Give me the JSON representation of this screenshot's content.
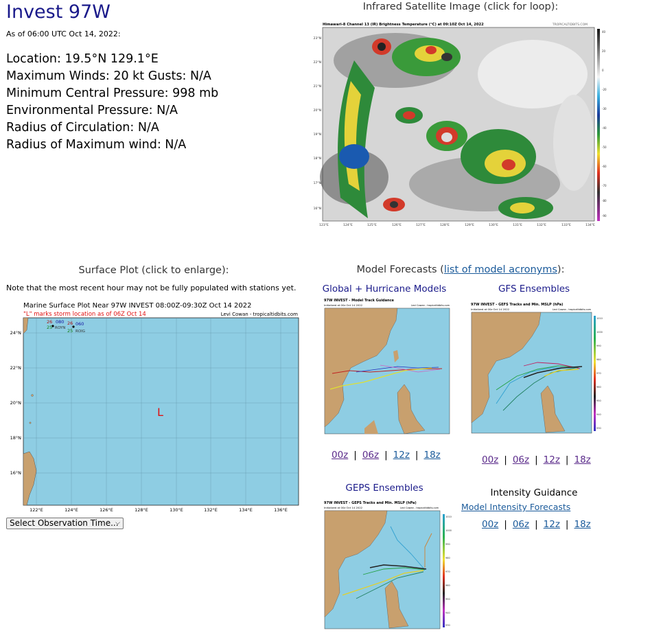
{
  "storm": {
    "title": "Invest 97W",
    "as_of": "As of 06:00 UTC Oct 14, 2022:",
    "location": "Location: 19.5°N 129.1°E",
    "max_winds": "Maximum Winds: 20 kt  Gusts: N/A",
    "min_pressure": "Minimum Central Pressure: 998 mb",
    "env_pressure": "Environmental Pressure: N/A",
    "radius_circ": "Radius of Circulation: N/A",
    "radius_max_wind": "Radius of Maximum wind: N/A"
  },
  "satellite": {
    "heading": "Infrared Satellite Image (click for loop):",
    "image_title": "Himawari-8 Channel 13 (IR) Brightness Temperature (°C) at 09:10Z Oct 14, 2022",
    "credit": "TROPICALTIDBITS.COM",
    "lat_labels": [
      "23°N",
      "22°N",
      "21°N",
      "20°N",
      "19°N",
      "18°N",
      "17°N",
      "16°N"
    ],
    "lon_labels": [
      "123°E",
      "124°E",
      "125°E",
      "126°E",
      "127°E",
      "128°E",
      "129°E",
      "130°E",
      "131°E",
      "132°E",
      "133°E",
      "134°E"
    ],
    "scale_labels": [
      "40",
      "20",
      "0",
      "-20",
      "-30",
      "-40",
      "-50",
      "-60",
      "-70",
      "-80",
      "-90"
    ]
  },
  "surface": {
    "heading": "Surface Plot (click to enlarge):",
    "note": "Note that the most recent hour may not be fully populated with stations yet.",
    "plot_title": "Marine Surface Plot Near 97W INVEST 08:00Z-09:30Z Oct 14 2022",
    "plot_subtitle": "\"L\" marks storm location as of 06Z Oct 14",
    "credit": "Levi Cowan - tropicaltidbits.com",
    "storm_marker": "L",
    "lat_labels": [
      "24°N",
      "22°N",
      "20°N",
      "18°N",
      "16°N"
    ],
    "lon_labels": [
      "122°E",
      "124°E",
      "126°E",
      "128°E",
      "130°E",
      "132°E",
      "134°E",
      "136°E"
    ],
    "stations": [
      {
        "temp": "26",
        "pres": "080",
        "id": "ROYN",
        "dew": "25"
      },
      {
        "temp": "26",
        "pres": "060",
        "id": "ROIG",
        "dew": "25"
      }
    ],
    "select_label": "Select Observation Time..."
  },
  "models": {
    "heading_prefix": "Model Forecasts (",
    "heading_link": "list of model acronyms",
    "heading_suffix": "):",
    "global": {
      "heading": "Global + Hurricane Models",
      "image_title": "97W INVEST - Model Track Guidance",
      "image_sub": "Initialized at 00z Oct 14 2022",
      "credit": "Levi Cowan - tropicaltidbits.com"
    },
    "gfs": {
      "heading": "GFS Ensembles",
      "image_title": "97W INVEST - GEFS Tracks and Min. MSLP (hPa)",
      "image_sub": "Initialized at 00z Oct 14 2022",
      "credit": "Levi Cowan - tropicaltidbits.com"
    },
    "geps": {
      "heading": "GEPS Ensembles",
      "image_title": "97W INVEST - GEPS Tracks and Min. MSLP (hPa)",
      "image_sub": "Initialized at 00z Oct 14 2022",
      "credit": "Levi Cowan - tropicaltidbits.com"
    },
    "intensity": {
      "heading": "Intensity Guidance",
      "link": "Model Intensity Forecasts"
    },
    "runs": [
      "00z",
      "06z",
      "12z",
      "18z"
    ],
    "pressure_scale": [
      "1010",
      "1000",
      "990",
      "980",
      "970",
      "960",
      "950",
      "940",
      "930"
    ]
  },
  "colors": {
    "title_navy": "#1a1a8a",
    "link_blue": "#1a5a9a",
    "visited_purple": "#5a2a8a",
    "ocean": "#8ecde3",
    "land": "#c8a06e"
  }
}
